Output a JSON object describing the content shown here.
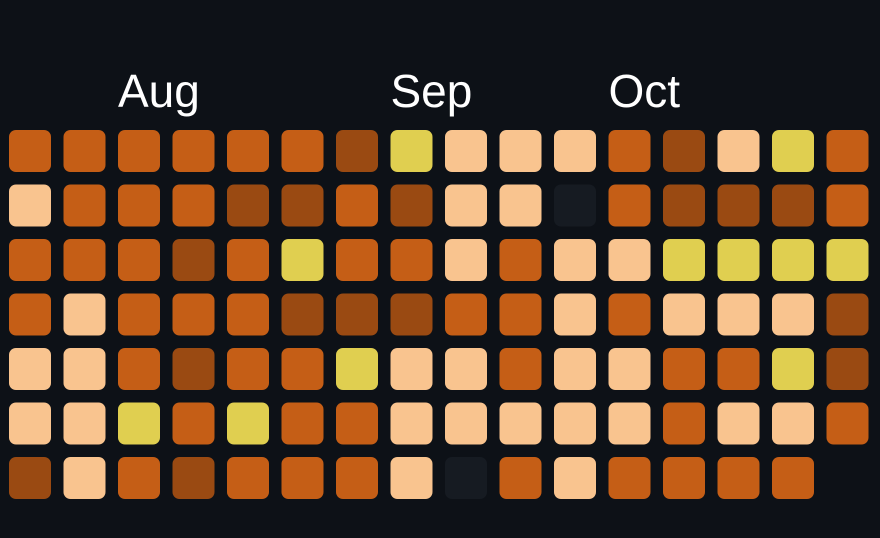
{
  "chart_data": {
    "type": "heatmap",
    "title": "",
    "month_labels": [
      {
        "label": "Aug",
        "week": 2
      },
      {
        "label": "Sep",
        "week": 7
      },
      {
        "label": "Oct",
        "week": 11
      }
    ],
    "level_colors": {
      "0": "#161b22",
      "1": "#9a4a12",
      "2": "#c55e16",
      "3": "#f9c48f",
      "4": "#e0cf50"
    },
    "weeks": [
      [
        2,
        3,
        2,
        2,
        3,
        3,
        1
      ],
      [
        2,
        2,
        2,
        3,
        3,
        3,
        3
      ],
      [
        2,
        2,
        2,
        2,
        2,
        4,
        2
      ],
      [
        2,
        2,
        1,
        2,
        1,
        2,
        1
      ],
      [
        2,
        1,
        2,
        2,
        2,
        4,
        2
      ],
      [
        2,
        1,
        4,
        1,
        2,
        2,
        2
      ],
      [
        1,
        2,
        2,
        1,
        4,
        2,
        2
      ],
      [
        4,
        1,
        2,
        1,
        3,
        3,
        3
      ],
      [
        3,
        3,
        3,
        2,
        3,
        3,
        0
      ],
      [
        3,
        3,
        2,
        2,
        2,
        3,
        2
      ],
      [
        3,
        0,
        3,
        3,
        3,
        3,
        3
      ],
      [
        2,
        2,
        3,
        2,
        3,
        3,
        2
      ],
      [
        1,
        1,
        4,
        3,
        2,
        2,
        2
      ],
      [
        3,
        1,
        4,
        3,
        2,
        3,
        2
      ],
      [
        4,
        1,
        4,
        3,
        4,
        3,
        2
      ],
      [
        2,
        2,
        4,
        1,
        1,
        2,
        null
      ]
    ]
  }
}
